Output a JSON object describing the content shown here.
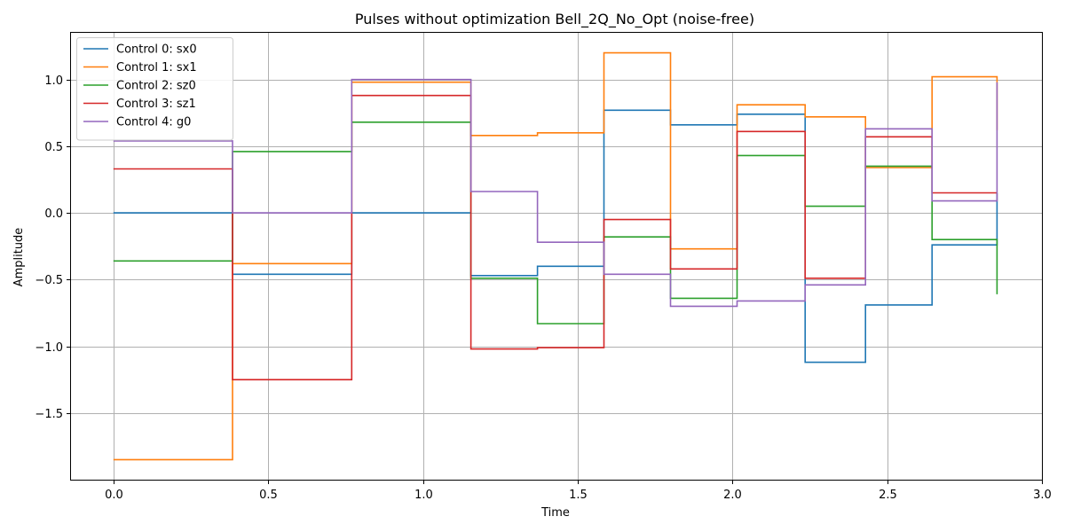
{
  "chart_data": {
    "type": "line",
    "step": "post",
    "title": "Pulses without optimization Bell_2Q_No_Opt (noise-free)",
    "xlabel": "Time",
    "ylabel": "Amplitude",
    "xlim": [
      -0.137,
      3.0
    ],
    "ylim": [
      -2.0,
      1.35
    ],
    "xticks": [
      0.0,
      0.5,
      1.0,
      1.5,
      2.0,
      2.5,
      3.0
    ],
    "xtick_labels": [
      "0.0",
      "0.5",
      "1.0",
      "1.5",
      "2.0",
      "2.5",
      "3.0"
    ],
    "yticks": [
      -1.5,
      -1.0,
      -0.5,
      0.0,
      0.5,
      1.0
    ],
    "ytick_labels": [
      "−1.5",
      "−1.0",
      "−0.5",
      "0.0",
      "0.5",
      "1.0"
    ],
    "grid": true,
    "legend_position": "top-left",
    "x": [
      0.0,
      0.385,
      0.77,
      1.155,
      1.37,
      1.585,
      1.8,
      2.015,
      2.235,
      2.43,
      2.645,
      2.855
    ],
    "series": [
      {
        "name": "Control 0: sx0",
        "color": "#1f77b4",
        "values": [
          0.0,
          -0.46,
          0.0,
          -0.47,
          -0.4,
          0.77,
          0.66,
          0.74,
          -1.12,
          -0.69,
          -0.24,
          0.15
        ]
      },
      {
        "name": "Control 1: sx1",
        "color": "#ff7f0e",
        "values": [
          -1.85,
          -0.38,
          0.98,
          0.58,
          0.6,
          1.2,
          -0.27,
          0.81,
          0.72,
          0.34,
          1.02,
          0.62
        ]
      },
      {
        "name": "Control 2: sz0",
        "color": "#2ca02c",
        "values": [
          -0.36,
          0.46,
          0.68,
          -0.49,
          -0.83,
          -0.18,
          -0.64,
          0.43,
          0.05,
          0.35,
          -0.2,
          -0.61
        ]
      },
      {
        "name": "Control 3: sz1",
        "color": "#d62728",
        "values": [
          0.33,
          -1.25,
          0.88,
          -1.02,
          -1.01,
          -0.05,
          -0.42,
          0.61,
          -0.49,
          0.57,
          0.15,
          0.15
        ]
      },
      {
        "name": "Control 4: g0",
        "color": "#9467bd",
        "values": [
          0.54,
          0.0,
          1.0,
          0.16,
          -0.22,
          -0.46,
          -0.7,
          -0.66,
          -0.54,
          0.63,
          0.09,
          0.98
        ]
      }
    ]
  }
}
